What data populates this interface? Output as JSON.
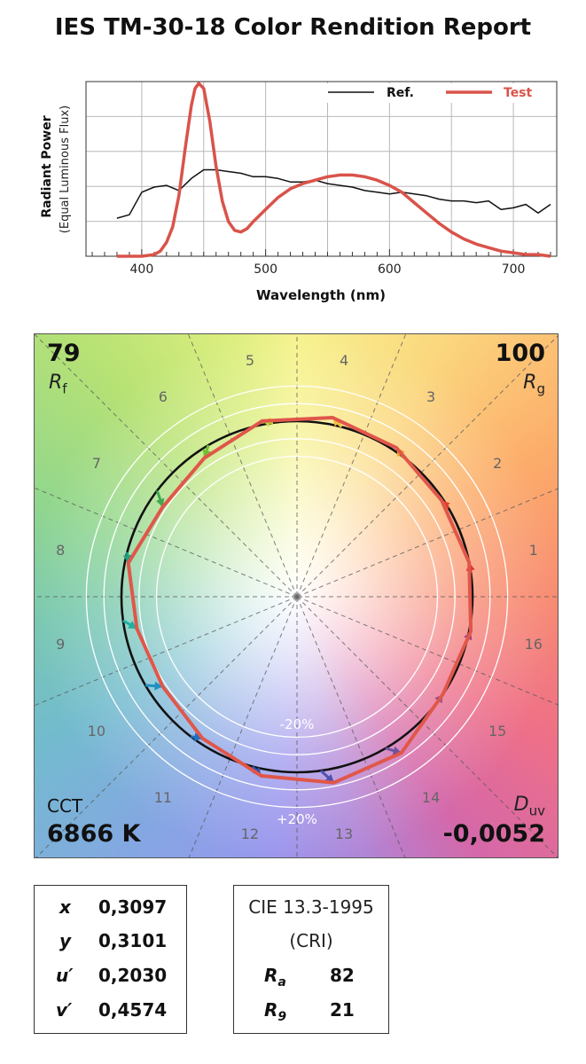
{
  "title": "IES TM-30-18 Color Rendition Report",
  "chart_data": [
    {
      "type": "line",
      "title": "",
      "xlabel": "Wavelength (nm)",
      "ylabel": "Radiant Power",
      "ylabel_sub": "(Equal Luminous Flux)",
      "xlim": [
        355,
        735
      ],
      "ylim": [
        0,
        1
      ],
      "xticks": [
        400,
        500,
        600,
        700
      ],
      "grid": true,
      "legend_position": "top-right",
      "series": [
        {
          "name": "Ref.",
          "color": "#111111",
          "x": [
            380,
            390,
            400,
            410,
            420,
            430,
            440,
            450,
            460,
            470,
            480,
            490,
            500,
            510,
            520,
            530,
            540,
            550,
            560,
            570,
            580,
            590,
            600,
            610,
            620,
            630,
            640,
            650,
            660,
            670,
            680,
            690,
            700,
            710,
            720,
            730
          ],
          "y": [
            0.22,
            0.24,
            0.37,
            0.4,
            0.41,
            0.38,
            0.45,
            0.5,
            0.5,
            0.49,
            0.48,
            0.46,
            0.46,
            0.45,
            0.43,
            0.43,
            0.44,
            0.42,
            0.41,
            0.4,
            0.38,
            0.37,
            0.36,
            0.37,
            0.36,
            0.35,
            0.33,
            0.32,
            0.32,
            0.31,
            0.32,
            0.27,
            0.28,
            0.3,
            0.25,
            0.3
          ]
        },
        {
          "name": "Test",
          "color": "#d9534a",
          "x": [
            380,
            390,
            400,
            410,
            415,
            420,
            425,
            430,
            435,
            440,
            443,
            446,
            450,
            455,
            460,
            465,
            470,
            475,
            480,
            485,
            490,
            500,
            510,
            520,
            530,
            540,
            550,
            560,
            570,
            580,
            590,
            600,
            610,
            620,
            630,
            640,
            650,
            660,
            670,
            680,
            690,
            700,
            710,
            720,
            730
          ],
          "y": [
            0,
            0,
            0,
            0.01,
            0.03,
            0.08,
            0.17,
            0.35,
            0.62,
            0.87,
            0.97,
            1.0,
            0.97,
            0.78,
            0.52,
            0.32,
            0.2,
            0.15,
            0.14,
            0.16,
            0.2,
            0.27,
            0.34,
            0.39,
            0.42,
            0.44,
            0.46,
            0.47,
            0.47,
            0.46,
            0.44,
            0.41,
            0.37,
            0.31,
            0.25,
            0.19,
            0.14,
            0.1,
            0.07,
            0.05,
            0.03,
            0.02,
            0.01,
            0.01,
            0.0
          ]
        }
      ]
    },
    {
      "type": "scatter",
      "title": "",
      "description_labels": {
        "rf_value": "79",
        "rf_symbol": "R",
        "rf_sub": "f",
        "rg_value": "100",
        "rg_symbol": "R",
        "rg_sub": "g",
        "cct_label": "CCT",
        "cct_value": "6866 K",
        "duv_symbol": "D",
        "duv_sub": "uv",
        "duv_value": "-0,0052",
        "ring_minus": "-20%",
        "ring_plus": "+20%"
      },
      "hue_bin_labels": [
        "1",
        "2",
        "3",
        "4",
        "5",
        "6",
        "7",
        "8",
        "9",
        "10",
        "11",
        "12",
        "13",
        "14",
        "15",
        "16"
      ],
      "reference_radius": 1.0,
      "ring_radii": [
        0.8,
        0.9,
        1.1,
        1.2
      ],
      "test_polygon_radius": [
        1.0,
        0.99,
        1.02,
        1.04,
        1.02,
        0.95,
        0.92,
        0.98,
        0.93,
        0.92,
        0.97,
        1.04,
        1.08,
        1.07,
        1.0,
        1.01
      ],
      "hue_shift_arrows": [
        {
          "bin": "1",
          "color": "#e03030"
        },
        {
          "bin": "2",
          "color": "#e0402a"
        },
        {
          "bin": "3",
          "color": "#f0a020"
        },
        {
          "bin": "4",
          "color": "#f0c040"
        },
        {
          "bin": "5",
          "color": "#c0d030"
        },
        {
          "bin": "6",
          "color": "#70c030"
        },
        {
          "bin": "7",
          "color": "#40a850"
        },
        {
          "bin": "8",
          "color": "#20a080"
        },
        {
          "bin": "9",
          "color": "#20b0a0"
        },
        {
          "bin": "10",
          "color": "#2090c0"
        },
        {
          "bin": "11",
          "color": "#2070c0"
        },
        {
          "bin": "12",
          "color": "#3050b0"
        },
        {
          "bin": "13",
          "color": "#5050b0"
        },
        {
          "bin": "14",
          "color": "#7050a0"
        },
        {
          "bin": "15",
          "color": "#905090"
        },
        {
          "bin": "16",
          "color": "#a04080"
        }
      ]
    }
  ],
  "chromaticity_table": {
    "rows": [
      {
        "key": "x",
        "value": "0,3097"
      },
      {
        "key": "y",
        "value": "0,3101"
      },
      {
        "key": "u′",
        "value": "0,2030"
      },
      {
        "key": "v′",
        "value": "0,4574"
      }
    ]
  },
  "cri_table": {
    "title": "CIE 13.3-1995",
    "subtitle": "(CRI)",
    "rows": [
      {
        "key": "R",
        "sub": "a",
        "value": "82"
      },
      {
        "key": "R",
        "sub": "9",
        "value": "21"
      }
    ]
  }
}
